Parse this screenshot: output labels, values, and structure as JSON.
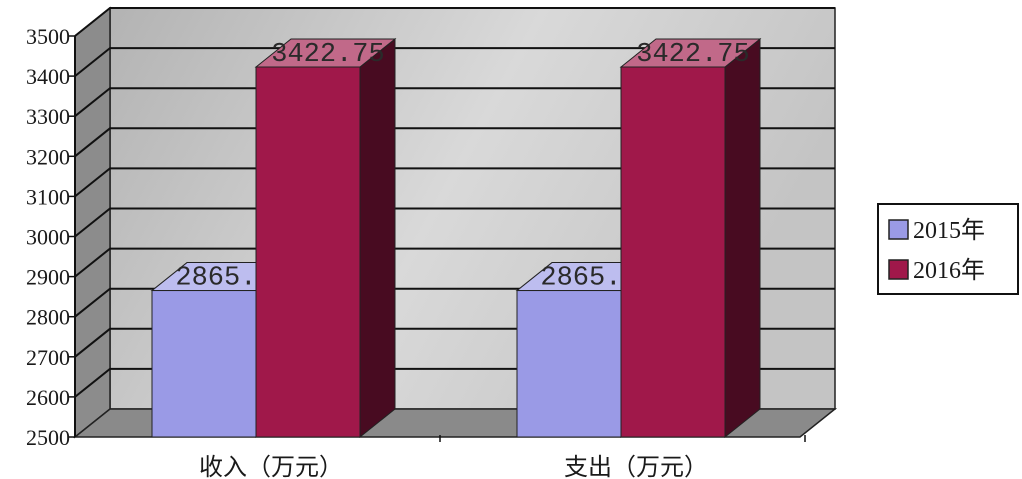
{
  "chart_data": {
    "type": "bar",
    "categories": [
      "收入（万元）",
      "支出（万元）"
    ],
    "series": [
      {
        "name": "2015年",
        "values": [
          2865.2,
          2865.2
        ],
        "color": "#9a9ae6"
      },
      {
        "name": "2016年",
        "values": [
          3422.75,
          3422.75
        ],
        "color": "#a0184a"
      }
    ],
    "data_labels": [
      [
        "2865.2",
        "2865.2"
      ],
      [
        "3422.75",
        "3422.75"
      ]
    ],
    "ylim": [
      2500,
      3500
    ],
    "y_ticks": [
      2500,
      2600,
      2700,
      2800,
      2900,
      3000,
      3100,
      3200,
      3300,
      3400,
      3500
    ],
    "grid": true,
    "legend_position": "right",
    "style": "3d-clustered-column"
  }
}
